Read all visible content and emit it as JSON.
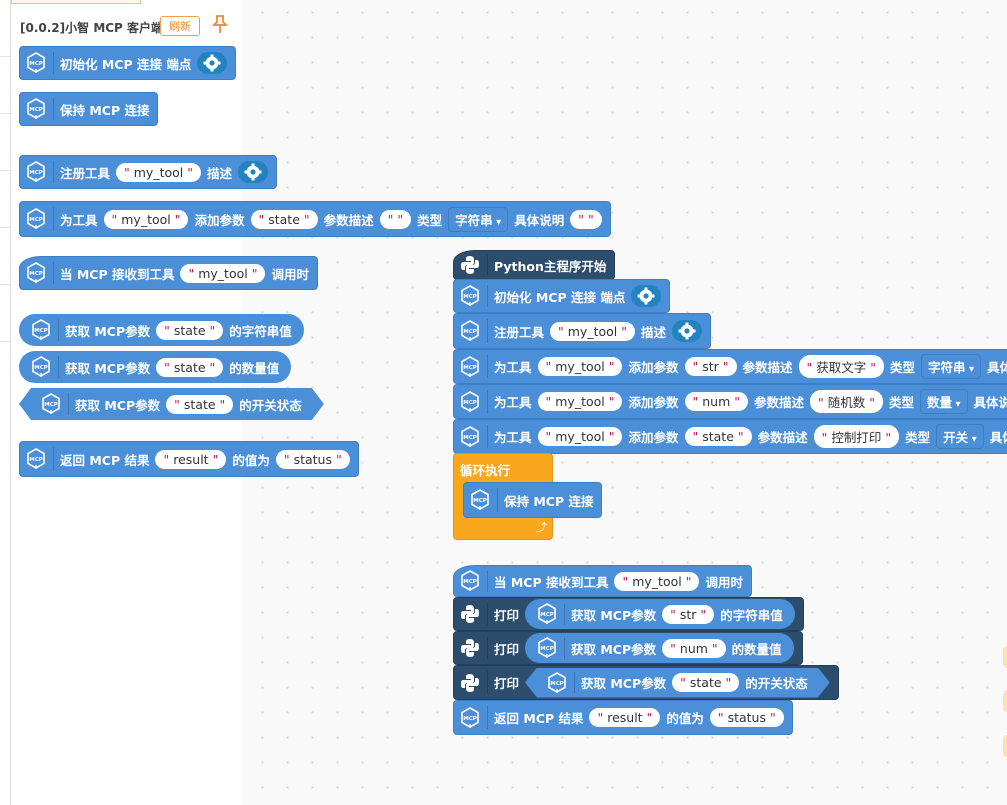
{
  "flyout": {
    "title": "[0.0.2]小智 MCP 客户端",
    "refresh_label": "刷新",
    "blocks": [
      {
        "kind": "stmt",
        "parts": [
          {
            "t": "label",
            "v": "初始化 MCP 连接 端点"
          },
          {
            "t": "gear"
          }
        ]
      },
      {
        "kind": "stmt",
        "parts": [
          {
            "t": "label",
            "v": "保持 MCP 连接"
          }
        ]
      },
      {
        "kind": "stmt",
        "parts": [
          {
            "t": "label",
            "v": "注册工具"
          },
          {
            "t": "str",
            "v": "my_tool"
          },
          {
            "t": "label",
            "v": "描述"
          },
          {
            "t": "gear"
          }
        ]
      },
      {
        "kind": "stmt",
        "parts": [
          {
            "t": "label",
            "v": "为工具"
          },
          {
            "t": "str",
            "v": "my_tool"
          },
          {
            "t": "label",
            "v": "添加参数"
          },
          {
            "t": "str",
            "v": "state"
          },
          {
            "t": "label",
            "v": "参数描述"
          },
          {
            "t": "str",
            "v": " "
          },
          {
            "t": "label",
            "v": "类型"
          },
          {
            "t": "dd",
            "v": "字符串"
          },
          {
            "t": "label",
            "v": "具体说明"
          },
          {
            "t": "str",
            "v": " "
          }
        ]
      },
      {
        "kind": "hat",
        "parts": [
          {
            "t": "label",
            "v": "当 MCP 接收到工具"
          },
          {
            "t": "str",
            "v": "my_tool"
          },
          {
            "t": "label",
            "v": "调用时"
          }
        ]
      },
      {
        "kind": "rep",
        "parts": [
          {
            "t": "label",
            "v": "获取 MCP参数"
          },
          {
            "t": "str",
            "v": "state"
          },
          {
            "t": "label",
            "v": "的字符串值"
          }
        ]
      },
      {
        "kind": "rep",
        "parts": [
          {
            "t": "label",
            "v": "获取 MCP参数"
          },
          {
            "t": "str",
            "v": "state"
          },
          {
            "t": "label",
            "v": "的数量值"
          }
        ]
      },
      {
        "kind": "hex",
        "parts": [
          {
            "t": "label",
            "v": "获取 MCP参数"
          },
          {
            "t": "str",
            "v": "state"
          },
          {
            "t": "label",
            "v": "的开关状态"
          }
        ]
      },
      {
        "kind": "stmt",
        "parts": [
          {
            "t": "label",
            "v": "返回 MCP 结果"
          },
          {
            "t": "str",
            "v": "result"
          },
          {
            "t": "label",
            "v": "的值为"
          },
          {
            "t": "str",
            "v": "status"
          }
        ]
      }
    ]
  },
  "workspace": {
    "blocks": [
      {
        "kind": "pyhat",
        "parts": [
          {
            "t": "label",
            "v": "Python主程序开始"
          }
        ]
      },
      {
        "kind": "stmt",
        "parts": [
          {
            "t": "label",
            "v": "初始化 MCP 连接 端点"
          },
          {
            "t": "gear"
          }
        ]
      },
      {
        "kind": "stmt",
        "parts": [
          {
            "t": "label",
            "v": "注册工具"
          },
          {
            "t": "str",
            "v": "my_tool"
          },
          {
            "t": "label",
            "v": "描述"
          },
          {
            "t": "gear"
          }
        ]
      },
      {
        "kind": "stmt",
        "parts": [
          {
            "t": "label",
            "v": "为工具"
          },
          {
            "t": "str",
            "v": "my_tool"
          },
          {
            "t": "label",
            "v": "添加参数"
          },
          {
            "t": "str",
            "v": "str"
          },
          {
            "t": "label",
            "v": "参数描述"
          },
          {
            "t": "str",
            "v": "获取文字"
          },
          {
            "t": "label",
            "v": "类型"
          },
          {
            "t": "dd",
            "v": "字符串"
          },
          {
            "t": "label",
            "v": "具体说明"
          }
        ]
      },
      {
        "kind": "stmt",
        "parts": [
          {
            "t": "label",
            "v": "为工具"
          },
          {
            "t": "str",
            "v": "my_tool"
          },
          {
            "t": "label",
            "v": "添加参数"
          },
          {
            "t": "str",
            "v": "num"
          },
          {
            "t": "label",
            "v": "参数描述"
          },
          {
            "t": "str",
            "v": "随机数"
          },
          {
            "t": "label",
            "v": "类型"
          },
          {
            "t": "dd",
            "v": "数量"
          },
          {
            "t": "label",
            "v": "具体说明"
          }
        ]
      },
      {
        "kind": "stmt",
        "parts": [
          {
            "t": "label",
            "v": "为工具"
          },
          {
            "t": "str",
            "v": "my_tool"
          },
          {
            "t": "label",
            "v": "添加参数"
          },
          {
            "t": "str",
            "v": "state"
          },
          {
            "t": "label",
            "v": "参数描述"
          },
          {
            "t": "str",
            "v": "控制打印"
          },
          {
            "t": "label",
            "v": "类型"
          },
          {
            "t": "dd",
            "v": "开关"
          },
          {
            "t": "label",
            "v": "具体说明"
          }
        ]
      },
      {
        "kind": "loop",
        "parts": [
          {
            "t": "label",
            "v": "循环执行"
          }
        ]
      },
      {
        "kind": "stmt",
        "parts": [
          {
            "t": "label",
            "v": "保持 MCP 连接"
          }
        ]
      },
      {
        "kind": "hat",
        "parts": [
          {
            "t": "label",
            "v": "当 MCP 接收到工具"
          },
          {
            "t": "str",
            "v": "my_tool"
          },
          {
            "t": "label",
            "v": "调用时"
          }
        ]
      },
      {
        "kind": "print",
        "parts": [
          {
            "t": "label",
            "v": "打印"
          },
          {
            "t": "rep",
            "shape": "round",
            "parts": [
              {
                "t": "label",
                "v": "获取 MCP参数"
              },
              {
                "t": "str",
                "v": "str"
              },
              {
                "t": "label",
                "v": "的字符串值"
              }
            ]
          }
        ]
      },
      {
        "kind": "print",
        "parts": [
          {
            "t": "label",
            "v": "打印"
          },
          {
            "t": "rep",
            "shape": "round",
            "parts": [
              {
                "t": "label",
                "v": "获取 MCP参数"
              },
              {
                "t": "str",
                "v": "num"
              },
              {
                "t": "label",
                "v": "的数量值"
              }
            ]
          }
        ]
      },
      {
        "kind": "print",
        "parts": [
          {
            "t": "label",
            "v": "打印"
          },
          {
            "t": "rep",
            "shape": "hex",
            "parts": [
              {
                "t": "label",
                "v": "获取 MCP参数"
              },
              {
                "t": "str",
                "v": "state"
              },
              {
                "t": "label",
                "v": "的开关状态"
              }
            ]
          }
        ]
      },
      {
        "kind": "stmt",
        "parts": [
          {
            "t": "label",
            "v": "返回 MCP 结果"
          },
          {
            "t": "str",
            "v": "result"
          },
          {
            "t": "label",
            "v": "的值为"
          },
          {
            "t": "str",
            "v": "status"
          }
        ]
      }
    ]
  },
  "colors": {
    "block_blue": "#4a8fd8",
    "python_dark": "#2d4d6d",
    "loop_orange": "#f9a71c",
    "accent_orange": "#f08a2e"
  }
}
